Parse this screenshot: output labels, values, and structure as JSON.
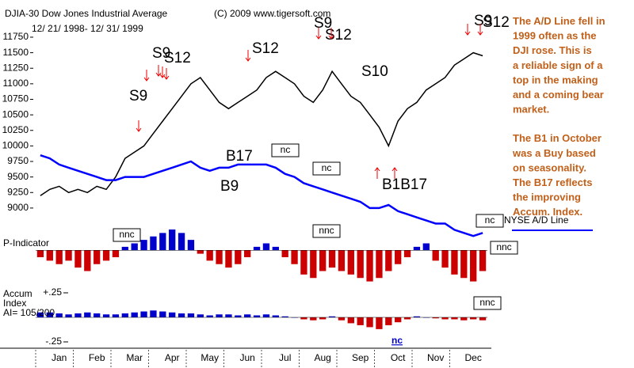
{
  "header": {
    "title": "DJIA-30  Dow Jones Industrial Average",
    "copyright": "(C) 2009 www.tigersoft.com",
    "range": "12/ 21/ 1998- 12/ 31/ 1999"
  },
  "note": [
    "The A/D Line fell in",
    "1999 often as the",
    "DJI rose.  This is",
    "a reliable sign of a",
    "top in the making",
    "and a coming bear",
    "market.",
    "The B1 in October",
    "was a Buy based",
    "on seasonality.",
    "The B17 reflects",
    "the improving",
    "Accum. Index."
  ],
  "annotations": [
    "S9",
    "S12",
    "S9",
    "S12",
    "S9",
    "S12",
    "S10",
    "S9",
    "S12",
    "B17",
    "B9",
    "B1B17",
    "nc",
    "nc",
    "nc",
    "NYSE A/D Line",
    "nnc",
    "nnc",
    "nnc",
    "nnc",
    "nc"
  ],
  "chart_data": [
    {
      "type": "line",
      "title": "DJIA-30",
      "categories": [
        "Jan",
        null,
        null,
        null,
        "Feb",
        null,
        null,
        null,
        "Mar",
        null,
        null,
        null,
        "Apr",
        null,
        null,
        null,
        "May",
        null,
        null,
        null,
        "Jun",
        null,
        null,
        null,
        "Jul",
        null,
        null,
        null,
        "Aug",
        null,
        null,
        null,
        "Sep",
        null,
        null,
        null,
        "Oct",
        null,
        null,
        null,
        "Nov",
        null,
        null,
        null,
        "Dec",
        null,
        null,
        null
      ],
      "series": [
        {
          "name": "DJIA",
          "color": "#000000",
          "values": [
            9200,
            9300,
            9350,
            9250,
            9300,
            9250,
            9350,
            9300,
            9500,
            9800,
            9900,
            10000,
            10200,
            10400,
            10600,
            10800,
            11000,
            11100,
            10900,
            10700,
            10600,
            10700,
            10800,
            10900,
            11100,
            11200,
            11100,
            11000,
            10800,
            10700,
            10900,
            11200,
            11000,
            10800,
            10700,
            10500,
            10300,
            10000,
            10400,
            10600,
            10700,
            10900,
            11000,
            11100,
            11300,
            11400,
            11500,
            11450
          ]
        },
        {
          "name": "NYSE A/D Line",
          "color": "#0000ff",
          "values": [
            9850,
            9800,
            9700,
            9650,
            9600,
            9550,
            9500,
            9450,
            9450,
            9500,
            9500,
            9500,
            9550,
            9600,
            9650,
            9700,
            9750,
            9650,
            9600,
            9650,
            9650,
            9700,
            9700,
            9700,
            9700,
            9650,
            9550,
            9500,
            9400,
            9350,
            9300,
            9250,
            9200,
            9150,
            9100,
            9000,
            9000,
            9050,
            8950,
            8900,
            8850,
            8800,
            8750,
            8750,
            8650,
            8600,
            8550,
            8600
          ]
        }
      ],
      "ylim": [
        8400,
        12100
      ],
      "yticks": [
        9000,
        9250,
        9500,
        9750,
        10000,
        10250,
        10500,
        10750,
        11000,
        11250,
        11500,
        11750
      ]
    },
    {
      "type": "histogram-bars",
      "title": "P-Indicator",
      "values": [
        -10,
        -15,
        -20,
        -15,
        -25,
        -30,
        -20,
        -15,
        -10,
        5,
        10,
        15,
        20,
        25,
        30,
        25,
        15,
        -5,
        -15,
        -20,
        -25,
        -20,
        -10,
        5,
        10,
        5,
        -10,
        -20,
        -35,
        -40,
        -30,
        -25,
        -30,
        -35,
        -40,
        -45,
        -40,
        -30,
        -20,
        -10,
        5,
        10,
        -15,
        -25,
        -35,
        -40,
        -45,
        -30
      ],
      "colors": [
        "#cc0000",
        "#0000cc"
      ],
      "ylim": [
        -50,
        30
      ]
    },
    {
      "type": "histogram-bars",
      "title": "Accum\nIndex\nAI= 105/200",
      "values": [
        0.05,
        0.05,
        0.04,
        0.03,
        0.04,
        0.05,
        0.04,
        0.03,
        0.03,
        0.04,
        0.05,
        0.06,
        0.07,
        0.06,
        0.05,
        0.04,
        0.04,
        0.03,
        0.02,
        0.03,
        0.03,
        0.02,
        0.03,
        0.02,
        0.03,
        0.02,
        0.01,
        0,
        -0.02,
        -0.03,
        -0.02,
        0.01,
        -0.03,
        -0.06,
        -0.08,
        -0.1,
        -0.12,
        -0.08,
        -0.05,
        -0.02,
        0.01,
        0,
        -0.01,
        -0.02,
        -0.02,
        -0.03,
        -0.02,
        -0.03
      ],
      "colors": [
        "#cc0000",
        "#0000cc"
      ],
      "ylim": [
        -0.25,
        0.25
      ],
      "yticks": [
        {
          "value": 0.25,
          "label": "+.25"
        },
        {
          "value": -0.25,
          "label": "-.25"
        }
      ]
    }
  ]
}
